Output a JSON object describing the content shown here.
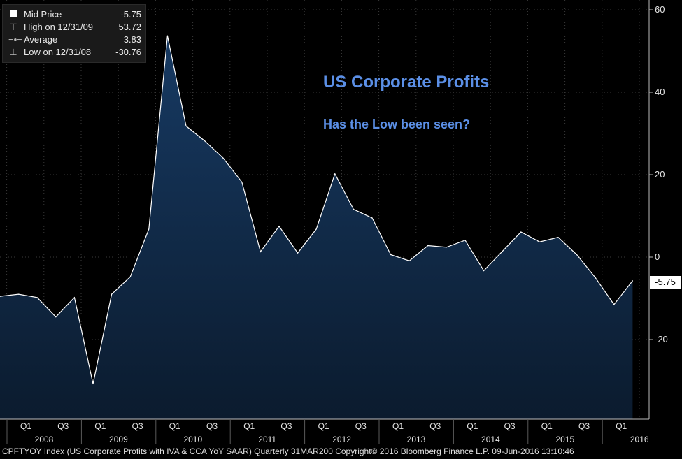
{
  "legend": {
    "rows": [
      {
        "symbol": "square",
        "label": "Mid Price",
        "value": "-5.75"
      },
      {
        "symbol": "high-icon",
        "label": "High on 12/31/09",
        "value": "53.72"
      },
      {
        "symbol": "average-icon",
        "label": "Average",
        "value": "3.83"
      },
      {
        "symbol": "low-icon",
        "label": "Low on 12/31/08",
        "value": "-30.76"
      }
    ]
  },
  "annotations": {
    "title": "US Corporate Profits",
    "subtitle": "Has the Low been seen?"
  },
  "last_value_tag": "-5.75",
  "footer": "CPFTYOY Index (US Corporate Profits with IVA & CCA YoY SAAR)  Quarterly 31MAR200  Copyright© 2016 Bloomberg Finance L.P.  09-Jun-2016 13:10:46",
  "colors": {
    "background": "#000000",
    "area_fill_top": "#173a63",
    "area_fill_bottom": "#0b1b2e",
    "line": "#ffffff",
    "grid": "#3a3a3a",
    "annotation": "#5b8fe6"
  },
  "chart_data": {
    "type": "area",
    "x_quarters": [
      "2007-Q3",
      "2007-Q4",
      "2008-Q1",
      "2008-Q2",
      "2008-Q3",
      "2008-Q4",
      "2009-Q1",
      "2009-Q2",
      "2009-Q3",
      "2009-Q4",
      "2010-Q1",
      "2010-Q2",
      "2010-Q3",
      "2010-Q4",
      "2011-Q1",
      "2011-Q2",
      "2011-Q3",
      "2011-Q4",
      "2012-Q1",
      "2012-Q2",
      "2012-Q3",
      "2012-Q4",
      "2013-Q1",
      "2013-Q2",
      "2013-Q3",
      "2013-Q4",
      "2014-Q1",
      "2014-Q2",
      "2014-Q3",
      "2014-Q4",
      "2015-Q1",
      "2015-Q2",
      "2015-Q3",
      "2015-Q4",
      "2016-Q1"
    ],
    "values": [
      -9.5,
      -9.0,
      -9.8,
      -14.5,
      -9.8,
      -30.76,
      -9.0,
      -4.8,
      6.8,
      53.72,
      31.8,
      28.2,
      24.0,
      18.2,
      1.3,
      7.5,
      1.0,
      6.8,
      20.2,
      11.6,
      9.5,
      0.6,
      -0.9,
      2.8,
      2.4,
      4.1,
      -3.3,
      1.4,
      6.1,
      3.7,
      4.8,
      0.6,
      -5.0,
      -11.5,
      -5.75
    ],
    "ylim": [
      -39,
      62
    ],
    "y_ticks": [
      60,
      40,
      20,
      0,
      -20
    ],
    "y_tick_labels": [
      "60",
      "40",
      "20",
      "0",
      "-20"
    ],
    "x_quarter_ticks": [
      "Q1",
      "Q3",
      "Q1",
      "Q3",
      "Q1",
      "Q3",
      "Q1",
      "Q3",
      "Q1",
      "Q3",
      "Q1",
      "Q3",
      "Q1",
      "Q3",
      "Q1",
      "Q3",
      "Q1"
    ],
    "x_year_labels": [
      "2008",
      "2009",
      "2010",
      "2011",
      "2012",
      "2013",
      "2014",
      "2015",
      "2016"
    ],
    "grid": true,
    "legend_position": "top-left"
  }
}
